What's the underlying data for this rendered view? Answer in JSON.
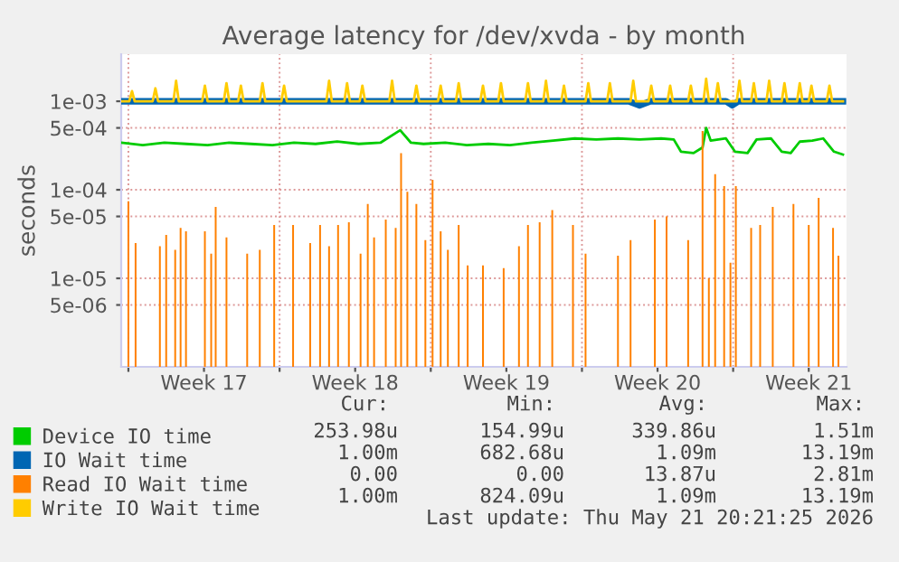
{
  "chart_data": {
    "type": "line",
    "title": "Average latency for /dev/xvda - by month",
    "ylabel": "seconds",
    "log": "y",
    "ylim": [
      1e-06,
      0.0034
    ],
    "yticks": [
      {
        "value": 0.001,
        "label": "1e-03"
      },
      {
        "value": 0.0005,
        "label": "5e-04"
      },
      {
        "value": 0.0001,
        "label": "1e-04"
      },
      {
        "value": 5e-05,
        "label": "5e-05"
      },
      {
        "value": 1e-05,
        "label": "1e-05"
      },
      {
        "value": 5e-06,
        "label": "5e-06"
      }
    ],
    "xlim": [
      "2026-04-19T16:00",
      "2026-05-23T06:00"
    ],
    "xticks": [
      {
        "value": "2026-04-20",
        "label": null
      },
      {
        "value": "2026-04-23T12:00",
        "label": "Week 17"
      },
      {
        "value": "2026-04-27",
        "label": null
      },
      {
        "value": "2026-04-30T12:00",
        "label": "Week 18"
      },
      {
        "value": "2026-05-04",
        "label": null
      },
      {
        "value": "2026-05-07T12:00",
        "label": "Week 19"
      },
      {
        "value": "2026-05-11",
        "label": null
      },
      {
        "value": "2026-05-14T12:00",
        "label": "Week 20"
      },
      {
        "value": "2026-05-18",
        "label": null
      },
      {
        "value": "2026-05-21T12:00",
        "label": "Week 21"
      }
    ],
    "grid": true,
    "legend": "bottom",
    "line_style": "solid",
    "marker": "none",
    "series": [
      {
        "name": "Device IO time",
        "color": "#00cc00",
        "x": [
          "2026-04-19T16:00",
          "2026-04-20T16:00",
          "2026-04-21T16:00",
          "2026-04-22T16:00",
          "2026-04-23T16:00",
          "2026-04-24T16:00",
          "2026-04-25T16:00",
          "2026-04-26T16:00",
          "2026-04-27T16:00",
          "2026-04-28T16:00",
          "2026-04-29T16:00",
          "2026-04-30T16:00",
          "2026-05-01T16:00",
          "2026-05-02T14:00",
          "2026-05-03T02:00",
          "2026-05-03T16:00",
          "2026-05-04T16:00",
          "2026-05-05T16:00",
          "2026-05-06T16:00",
          "2026-05-07T16:00",
          "2026-05-08T16:00",
          "2026-05-09T16:00",
          "2026-05-10T16:00",
          "2026-05-11T16:00",
          "2026-05-12T16:00",
          "2026-05-13T16:00",
          "2026-05-14T16:00",
          "2026-05-15T06:00",
          "2026-05-15T14:00",
          "2026-05-16T04:00",
          "2026-05-16T14:00",
          "2026-05-16T18:00",
          "2026-05-16T23:00",
          "2026-05-17T16:00",
          "2026-05-18T02:00",
          "2026-05-18T16:00",
          "2026-05-19T02:00",
          "2026-05-19T18:00",
          "2026-05-20T06:00",
          "2026-05-20T16:00",
          "2026-05-21T02:00",
          "2026-05-21T16:00",
          "2026-05-22T04:00",
          "2026-05-22T16:00",
          "2026-05-23T02:00"
        ],
        "values": [
          0.00034,
          0.00032,
          0.00034,
          0.00033,
          0.00032,
          0.00034,
          0.00033,
          0.00032,
          0.00034,
          0.00033,
          0.00035,
          0.00033,
          0.00034,
          0.00047,
          0.00034,
          0.00033,
          0.00034,
          0.00032,
          0.00033,
          0.00032,
          0.00034,
          0.00036,
          0.00038,
          0.00037,
          0.00038,
          0.00037,
          0.00038,
          0.00037,
          0.00027,
          0.00026,
          0.0003,
          0.0005,
          0.00036,
          0.00038,
          0.00027,
          0.00026,
          0.00037,
          0.00038,
          0.00027,
          0.00026,
          0.00035,
          0.00036,
          0.00038,
          0.00027,
          0.00025
        ]
      },
      {
        "name": "IO Wait time",
        "color": "#0066b3",
        "x": [
          "2026-04-19T16:00",
          "2026-04-24T16:00",
          "2026-04-29T16:00",
          "2026-05-04T16:00",
          "2026-05-09T16:00",
          "2026-05-13T04:00",
          "2026-05-13T16:00",
          "2026-05-14T04:00",
          "2026-05-17T16:00",
          "2026-05-17T23:00",
          "2026-05-18T06:00",
          "2026-05-23T02:00"
        ],
        "values": [
          0.001,
          0.001,
          0.001,
          0.001,
          0.001,
          0.001,
          0.0009,
          0.001,
          0.001,
          0.0009,
          0.001,
          0.001
        ]
      },
      {
        "name": "Read IO Wait time",
        "color": "#ff8000",
        "type": "bar",
        "x": [
          "2026-04-20T00:00",
          "2026-04-20T08:00",
          "2026-04-21T11:00",
          "2026-04-21T18:00",
          "2026-04-22T04:00",
          "2026-04-22T10:00",
          "2026-04-22T16:00",
          "2026-04-23T13:00",
          "2026-04-23T20:00",
          "2026-04-24T01:00",
          "2026-04-24T13:00",
          "2026-04-25T12:00",
          "2026-04-26T02:00",
          "2026-04-26T18:00",
          "2026-04-27T15:00",
          "2026-04-28T10:00",
          "2026-04-28T21:00",
          "2026-04-29T07:00",
          "2026-04-29T17:00",
          "2026-04-30T05:00",
          "2026-04-30T18:00",
          "2026-05-01T02:00",
          "2026-05-01T09:00",
          "2026-05-01T22:00",
          "2026-05-02T09:00",
          "2026-05-02T15:00",
          "2026-05-02T22:00",
          "2026-05-03T08:00",
          "2026-05-03T18:00",
          "2026-05-04T02:00",
          "2026-05-04T11:00",
          "2026-05-04T19:00",
          "2026-05-05T07:00",
          "2026-05-05T17:00",
          "2026-05-06T10:00",
          "2026-05-07T09:00",
          "2026-05-08T02:00",
          "2026-05-08T12:00",
          "2026-05-09T01:00",
          "2026-05-09T15:00",
          "2026-05-10T14:00",
          "2026-05-11T04:00",
          "2026-05-12T16:00",
          "2026-05-13T06:00",
          "2026-05-14T09:00",
          "2026-05-14T22:00",
          "2026-05-15T22:00",
          "2026-05-16T14:00",
          "2026-05-16T21:00",
          "2026-05-17T04:00",
          "2026-05-17T14:00",
          "2026-05-17T21:00",
          "2026-05-18T03:00",
          "2026-05-18T20:00",
          "2026-05-19T06:00",
          "2026-05-19T20:00",
          "2026-05-20T19:00",
          "2026-05-21T12:00",
          "2026-05-21T23:00",
          "2026-05-22T15:00",
          "2026-05-22T21:00"
        ],
        "values": [
          7.4e-05,
          2.5e-05,
          2.3e-05,
          3.1e-05,
          2.1e-05,
          3.7e-05,
          3.4e-05,
          3.4e-05,
          1.9e-05,
          6.4e-05,
          2.9e-05,
          1.9e-05,
          2.1e-05,
          4e-05,
          4e-05,
          2.5e-05,
          4e-05,
          2.3e-05,
          4e-05,
          4.3e-05,
          1.9e-05,
          6.9e-05,
          2.9e-05,
          4.6e-05,
          3.7e-05,
          0.00026,
          9.5e-05,
          6.9e-05,
          2.7e-05,
          0.00013,
          3.4e-05,
          2.1e-05,
          4e-05,
          1.4e-05,
          1.4e-05,
          1.3e-05,
          2.3e-05,
          4e-05,
          4.3e-05,
          5.9e-05,
          4e-05,
          1.9e-05,
          1.8e-05,
          2.7e-05,
          4.6e-05,
          5e-05,
          2.7e-05,
          0.00046,
          1e-05,
          0.00015,
          0.00011,
          1.5e-05,
          0.00011,
          3.7e-05,
          4e-05,
          6.4e-05,
          6.9e-05,
          4e-05,
          8.1e-05,
          3.7e-05,
          1.8e-05
        ]
      },
      {
        "name": "Write IO Wait time",
        "color": "#ffcc00",
        "x": [
          "2026-04-19T16:00",
          "2026-04-20T01:00",
          "2026-04-20T04:00",
          "2026-04-20T07:00",
          "2026-04-21T03:00",
          "2026-04-21T06:00",
          "2026-04-21T09:00",
          "2026-04-22T02:00",
          "2026-04-22T05:00",
          "2026-04-22T08:00",
          "2026-04-23T10:00",
          "2026-04-23T13:00",
          "2026-04-23T16:00",
          "2026-04-24T10:00",
          "2026-04-24T13:00",
          "2026-04-24T16:00",
          "2026-04-25T02:00",
          "2026-04-25T05:00",
          "2026-04-25T08:00",
          "2026-04-26T02:00",
          "2026-04-26T05:00",
          "2026-04-26T08:00",
          "2026-04-27T02:00",
          "2026-04-27T05:00",
          "2026-04-27T08:00",
          "2026-04-29T04:00",
          "2026-04-29T07:00",
          "2026-04-29T10:00",
          "2026-04-30T00:00",
          "2026-04-30T03:00",
          "2026-04-30T06:00",
          "2026-04-30T17:00",
          "2026-04-30T20:00",
          "2026-04-30T23:00",
          "2026-05-02T02:00",
          "2026-05-02T05:00",
          "2026-05-02T08:00",
          "2026-05-03T05:00",
          "2026-05-03T08:00",
          "2026-05-03T11:00",
          "2026-05-04T08:00",
          "2026-05-04T11:00",
          "2026-05-04T14:00",
          "2026-05-05T04:00",
          "2026-05-05T07:00",
          "2026-05-05T10:00",
          "2026-05-06T07:00",
          "2026-05-06T10:00",
          "2026-05-06T13:00",
          "2026-05-07T03:00",
          "2026-05-07T06:00",
          "2026-05-07T09:00",
          "2026-05-08T09:00",
          "2026-05-08T12:00",
          "2026-05-08T15:00",
          "2026-05-09T05:00",
          "2026-05-09T08:00",
          "2026-05-09T11:00",
          "2026-05-10T01:00",
          "2026-05-10T04:00",
          "2026-05-10T07:00",
          "2026-05-11T04:00",
          "2026-05-11T07:00",
          "2026-05-11T10:00",
          "2026-05-12T04:00",
          "2026-05-12T07:00",
          "2026-05-12T10:00",
          "2026-05-13T06:00",
          "2026-05-13T09:00",
          "2026-05-13T12:00",
          "2026-05-14T02:00",
          "2026-05-14T05:00",
          "2026-05-14T08:00",
          "2026-05-14T23:00",
          "2026-05-15T02:00",
          "2026-05-15T05:00",
          "2026-05-15T22:00",
          "2026-05-16T01:00",
          "2026-05-16T04:00",
          "2026-05-16T15:00",
          "2026-05-16T18:00",
          "2026-05-16T21:00",
          "2026-05-17T04:00",
          "2026-05-17T07:00",
          "2026-05-17T10:00",
          "2026-05-18T04:00",
          "2026-05-18T07:00",
          "2026-05-18T10:00",
          "2026-05-18T20:00",
          "2026-05-18T23:00",
          "2026-05-19T02:00",
          "2026-05-19T13:00",
          "2026-05-19T16:00",
          "2026-05-19T19:00",
          "2026-05-20T06:00",
          "2026-05-20T09:00",
          "2026-05-20T12:00",
          "2026-05-20T23:00",
          "2026-05-21T02:00",
          "2026-05-21T05:00",
          "2026-05-21T12:00",
          "2026-05-21T15:00",
          "2026-05-21T18:00",
          "2026-05-22T08:00",
          "2026-05-22T11:00",
          "2026-05-22T14:00",
          "2026-05-23T02:00"
        ],
        "values": [
          0.001,
          0.001,
          0.0013,
          0.001,
          0.001,
          0.0014,
          0.001,
          0.001,
          0.0017,
          0.001,
          0.001,
          0.0015,
          0.001,
          0.001,
          0.0016,
          0.001,
          0.001,
          0.0015,
          0.001,
          0.001,
          0.0016,
          0.001,
          0.001,
          0.0015,
          0.001,
          0.001,
          0.0017,
          0.001,
          0.001,
          0.0016,
          0.001,
          0.001,
          0.0015,
          0.001,
          0.001,
          0.0017,
          0.001,
          0.001,
          0.0015,
          0.001,
          0.001,
          0.0015,
          0.001,
          0.001,
          0.0016,
          0.001,
          0.001,
          0.0015,
          0.001,
          0.001,
          0.0016,
          0.001,
          0.001,
          0.0016,
          0.001,
          0.001,
          0.0017,
          0.001,
          0.001,
          0.0015,
          0.001,
          0.001,
          0.0016,
          0.001,
          0.001,
          0.0016,
          0.001,
          0.001,
          0.0017,
          0.001,
          0.001,
          0.0015,
          0.001,
          0.001,
          0.0015,
          0.001,
          0.001,
          0.0015,
          0.001,
          0.001,
          0.0018,
          0.001,
          0.001,
          0.0016,
          0.001,
          0.001,
          0.0017,
          0.001,
          0.001,
          0.0016,
          0.001,
          0.001,
          0.0017,
          0.001,
          0.001,
          0.0016,
          0.001,
          0.001,
          0.0016,
          0.001,
          0.001,
          0.0015,
          0.001,
          0.001,
          0.0015,
          0.001,
          0.001
        ]
      }
    ],
    "annotations": [
      "Cur:",
      "Min:",
      "Avg:",
      "Max:",
      "253.98u",
      "154.99u",
      "339.86u",
      "1.51m",
      "1.00m",
      "682.68u",
      "1.09m",
      "13.19m",
      "0.00",
      "0.00",
      "13.87u",
      "2.81m",
      "1.00m",
      "824.09u",
      "1.09m",
      "13.19m",
      "Last update: Thu May 21 20:21:25 2026"
    ]
  }
}
